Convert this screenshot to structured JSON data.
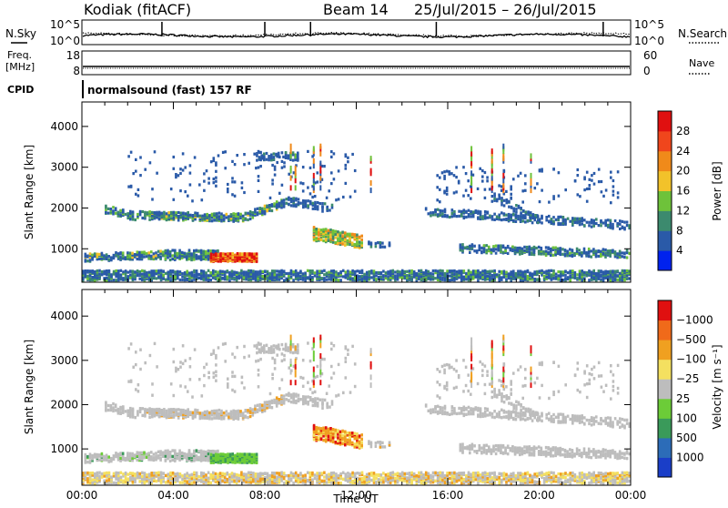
{
  "header": {
    "station": "Kodiak (fitACF)",
    "beam": "Beam 14",
    "dates": "25/Jul/2015 – 26/Jul/2015"
  },
  "top_panel": {
    "left_label": "N.Sky",
    "right_label": "N.Search",
    "tick_hi_left": "10^5",
    "tick_lo_left": "10^0",
    "tick_hi_right": "10^5",
    "tick_lo_right": "10^0"
  },
  "freq_panel": {
    "left_label_1": "Freq.",
    "left_label_2": "[MHz]",
    "left_hi": "18",
    "left_lo": "8",
    "right_label": "Nave",
    "right_hi": "60",
    "right_lo": "0"
  },
  "cpid": {
    "label": "CPID",
    "value": "normalsound (fast) 157 RF"
  },
  "chart_data": [
    {
      "type": "heatmap",
      "name": "power",
      "ylabel": "Slant Range [km]",
      "xlabel": "",
      "x_ticks": [
        "00:00",
        "04:00",
        "08:00",
        "12:00",
        "16:00",
        "20:00",
        "00:00"
      ],
      "xlim_hours": [
        0,
        24
      ],
      "y_ticks": [
        1000,
        2000,
        3000,
        4000
      ],
      "ylim": [
        180,
        4600
      ],
      "colorbar": {
        "label": "Power [dB]",
        "ticks": [
          "4",
          "8",
          "12",
          "16",
          "20",
          "24",
          "28"
        ],
        "colors": [
          "#0022ee",
          "#2a5aa8",
          "#3c8a6e",
          "#6ec23a",
          "#f2c22a",
          "#f08a1a",
          "#f0461c",
          "#e01010"
        ]
      }
    },
    {
      "type": "heatmap",
      "name": "velocity",
      "ylabel": "Slant Range [km]",
      "xlabel": "Time UT",
      "x_ticks": [
        "00:00",
        "04:00",
        "08:00",
        "12:00",
        "16:00",
        "20:00",
        "00:00"
      ],
      "xlim_hours": [
        0,
        24
      ],
      "y_ticks": [
        1000,
        2000,
        3000,
        4000
      ],
      "ylim": [
        180,
        4600
      ],
      "colorbar": {
        "label": "Velocity [m s⁻¹]",
        "ticks": [
          "1000",
          "500",
          "100",
          "25",
          "−25",
          "−100",
          "−500",
          "−1000"
        ],
        "colors": [
          "#1a3ec8",
          "#2c6cb8",
          "#3a9a5a",
          "#6ccc38",
          "#bdbdbd",
          "#f4e060",
          "#f0a020",
          "#f06a1a",
          "#e01010"
        ]
      }
    }
  ]
}
